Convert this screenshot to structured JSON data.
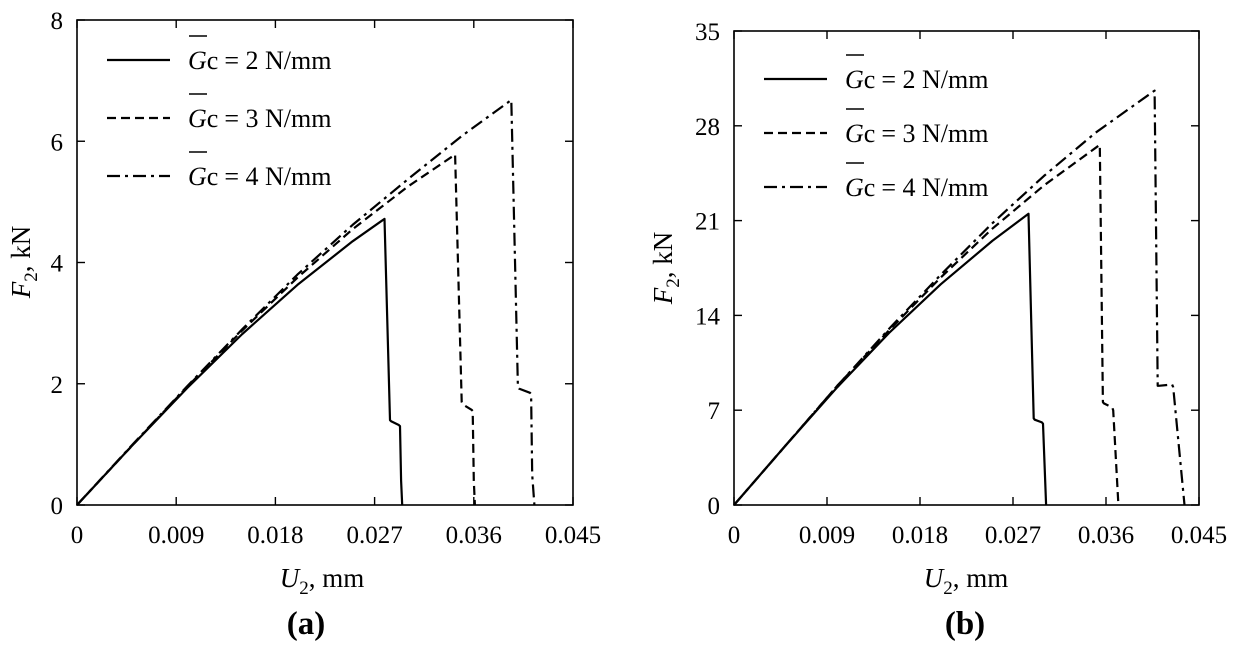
{
  "chart_data": [
    {
      "type": "line",
      "panel_label": "(a)",
      "xlabel": {
        "main": "U",
        "sub": "2",
        "unit": ", mm"
      },
      "ylabel": {
        "main": "F",
        "sub": "2",
        "unit": ", kN"
      },
      "xlim": [
        0,
        0.045
      ],
      "ylim": [
        0,
        8
      ],
      "xticks": [
        0,
        0.009,
        0.018,
        0.027,
        0.036,
        0.045
      ],
      "xtick_labels": [
        "0",
        "0.009",
        "0.018",
        "0.027",
        "0.036",
        "0.045"
      ],
      "yticks": [
        0,
        2,
        4,
        6,
        8
      ],
      "ytick_labels": [
        "0",
        "2",
        "4",
        "6",
        "8"
      ],
      "legend_position": "top-left",
      "series": [
        {
          "name": "= 2 N/mm",
          "symbol": "G",
          "symbol_sub": "c",
          "dash": "solid",
          "x": [
            0,
            0.005,
            0.01,
            0.015,
            0.02,
            0.025,
            0.0279,
            0.0284,
            0.0285,
            0.0292,
            0.0293,
            0.0294,
            0.0295
          ],
          "y": [
            0,
            0.98,
            1.93,
            2.82,
            3.63,
            4.35,
            4.72,
            1.4,
            1.38,
            1.32,
            1.3,
            0.4,
            0
          ]
        },
        {
          "name": "= 3 N/mm",
          "symbol": "G",
          "symbol_sub": "c",
          "dash": "dashed",
          "x": [
            0,
            0.005,
            0.01,
            0.015,
            0.02,
            0.025,
            0.03,
            0.0343,
            0.0349,
            0.035,
            0.0358,
            0.0359,
            0.036,
            0.0361
          ],
          "y": [
            0,
            0.98,
            1.95,
            2.88,
            3.75,
            4.55,
            5.25,
            5.78,
            1.7,
            1.66,
            1.57,
            1.55,
            0.4,
            0
          ]
        },
        {
          "name": "= 4 N/mm",
          "symbol": "G",
          "symbol_sub": "c",
          "dash": "dashdot",
          "x": [
            0,
            0.005,
            0.01,
            0.015,
            0.02,
            0.025,
            0.03,
            0.035,
            0.0394,
            0.04,
            0.0401,
            0.0411,
            0.0412,
            0.0413,
            0.0415
          ],
          "y": [
            0,
            0.99,
            1.96,
            2.9,
            3.8,
            4.62,
            5.37,
            6.1,
            6.68,
            1.95,
            1.92,
            1.85,
            1.83,
            0.5,
            0
          ]
        }
      ]
    },
    {
      "type": "line",
      "panel_label": "(b)",
      "xlabel": {
        "main": "U",
        "sub": "2",
        "unit": ", mm"
      },
      "ylabel": {
        "main": "F",
        "sub": "2",
        "unit": ", kN"
      },
      "xlim": [
        0,
        0.045
      ],
      "ylim": [
        0,
        35
      ],
      "xticks": [
        0,
        0.009,
        0.018,
        0.027,
        0.036,
        0.045
      ],
      "xtick_labels": [
        "0",
        "0.009",
        "0.018",
        "0.027",
        "0.036",
        "0.045"
      ],
      "yticks": [
        0,
        7,
        14,
        21,
        28,
        35
      ],
      "ytick_labels": [
        "0",
        "7",
        "14",
        "21",
        "28",
        "35"
      ],
      "legend_position": "top-left",
      "series": [
        {
          "name": "= 2 N/mm",
          "symbol": "G",
          "symbol_sub": "c",
          "dash": "solid",
          "x": [
            0,
            0.005,
            0.01,
            0.015,
            0.02,
            0.025,
            0.0285,
            0.029,
            0.0291,
            0.0298,
            0.0299,
            0.0302
          ],
          "y": [
            0,
            4.4,
            8.7,
            12.7,
            16.3,
            19.5,
            21.5,
            6.4,
            6.3,
            6.1,
            6.0,
            0
          ]
        },
        {
          "name": "= 3 N/mm",
          "symbol": "G",
          "symbol_sub": "c",
          "dash": "dashed",
          "x": [
            0,
            0.005,
            0.01,
            0.015,
            0.02,
            0.025,
            0.03,
            0.0354,
            0.0357,
            0.0358,
            0.0366,
            0.0367,
            0.0372
          ],
          "y": [
            0,
            4.4,
            8.8,
            12.9,
            16.8,
            20.4,
            23.6,
            26.6,
            7.6,
            7.5,
            7.2,
            7.0,
            0
          ]
        },
        {
          "name": "= 4 N/mm",
          "symbol": "G",
          "symbol_sub": "c",
          "dash": "dashdot",
          "x": [
            0,
            0.005,
            0.01,
            0.015,
            0.02,
            0.025,
            0.03,
            0.035,
            0.0407,
            0.041,
            0.0411,
            0.0424,
            0.0425,
            0.0436
          ],
          "y": [
            0,
            4.4,
            8.8,
            13.0,
            17.0,
            20.8,
            24.3,
            27.5,
            30.6,
            8.8,
            8.8,
            8.9,
            8.7,
            0
          ]
        }
      ]
    }
  ]
}
